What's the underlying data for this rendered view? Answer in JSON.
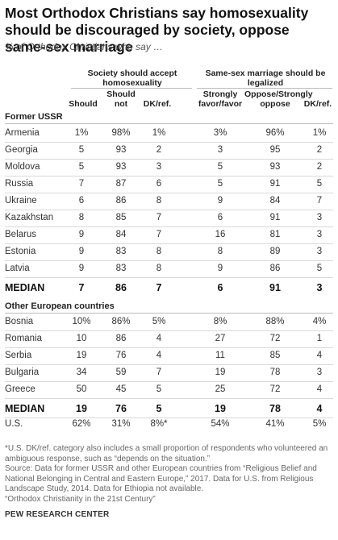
{
  "title": "Most Orthodox Christians say homosexuality should be discouraged by society, oppose same-sex marriage",
  "subtitle": "% of Orthodox Christians who say …",
  "group_heads": {
    "accept": "Society should accept homosexuality",
    "marriage": "Same-sex marriage should be legalized"
  },
  "col_heads": {
    "should": "Should",
    "should_not": "Should not",
    "dk1": "DK/ref.",
    "favor": "Strongly favor/favor",
    "oppose": "Oppose/Strongly oppose",
    "dk2": "DK/ref."
  },
  "sections": {
    "ussr": "Former USSR",
    "europe": "Other European countries"
  },
  "chart_data": {
    "type": "table",
    "title": "Most Orthodox Christians say homosexuality should be discouraged by society, oppose same-sex marriage",
    "columns": [
      "Should",
      "Should not",
      "DK/ref.",
      "Strongly favor/favor",
      "Oppose/Strongly oppose",
      "DK/ref."
    ],
    "ussr_rows": [
      {
        "label": "Armenia",
        "values": [
          "1%",
          "98%",
          "1%",
          "3%",
          "96%",
          "1%"
        ]
      },
      {
        "label": "Georgia",
        "values": [
          "5",
          "93",
          "2",
          "3",
          "95",
          "2"
        ]
      },
      {
        "label": "Moldova",
        "values": [
          "5",
          "93",
          "3",
          "5",
          "93",
          "2"
        ]
      },
      {
        "label": "Russia",
        "values": [
          "7",
          "87",
          "6",
          "5",
          "91",
          "5"
        ]
      },
      {
        "label": "Ukraine",
        "values": [
          "6",
          "86",
          "8",
          "9",
          "84",
          "7"
        ]
      },
      {
        "label": "Kazakhstan",
        "values": [
          "8",
          "85",
          "7",
          "6",
          "91",
          "3"
        ]
      },
      {
        "label": "Belarus",
        "values": [
          "9",
          "84",
          "7",
          "16",
          "81",
          "3"
        ]
      },
      {
        "label": "Estonia",
        "values": [
          "9",
          "83",
          "8",
          "8",
          "89",
          "3"
        ]
      },
      {
        "label": "Latvia",
        "values": [
          "9",
          "83",
          "8",
          "9",
          "86",
          "5"
        ]
      }
    ],
    "ussr_median": {
      "label": "MEDIAN",
      "values": [
        "7",
        "86",
        "7",
        "6",
        "91",
        "3"
      ]
    },
    "europe_rows": [
      {
        "label": "Bosnia",
        "values": [
          "10%",
          "86%",
          "5%",
          "8%",
          "88%",
          "4%"
        ]
      },
      {
        "label": "Romania",
        "values": [
          "10",
          "86",
          "4",
          "27",
          "72",
          "1"
        ]
      },
      {
        "label": "Serbia",
        "values": [
          "19",
          "76",
          "4",
          "11",
          "85",
          "4"
        ]
      },
      {
        "label": "Bulgaria",
        "values": [
          "34",
          "59",
          "7",
          "19",
          "78",
          "3"
        ]
      },
      {
        "label": "Greece",
        "values": [
          "50",
          "45",
          "5",
          "25",
          "72",
          "4"
        ]
      }
    ],
    "europe_median": {
      "label": "MEDIAN",
      "values": [
        "19",
        "76",
        "5",
        "19",
        "78",
        "4"
      ]
    },
    "us_row": {
      "label": "U.S.",
      "values": [
        "62%",
        "31%",
        "8%*",
        "54%",
        "41%",
        "5%"
      ]
    }
  },
  "footnotes": {
    "note": "*U.S. DK/ref. category also includes a small proportion of respondents who volunteered an ambiguous response, such as “depends on the situation.”",
    "source": "Source: Data for former USSR and other European countries from “Religious Belief and National Belonging in Central and Eastern Europe,” 2017. Data for U.S. from Religious Landscape Study, 2014. Data for Ethiopia not available.",
    "report": "“Orthodox Christianity in the 21st Century”"
  },
  "brand": "PEW RESEARCH CENTER"
}
